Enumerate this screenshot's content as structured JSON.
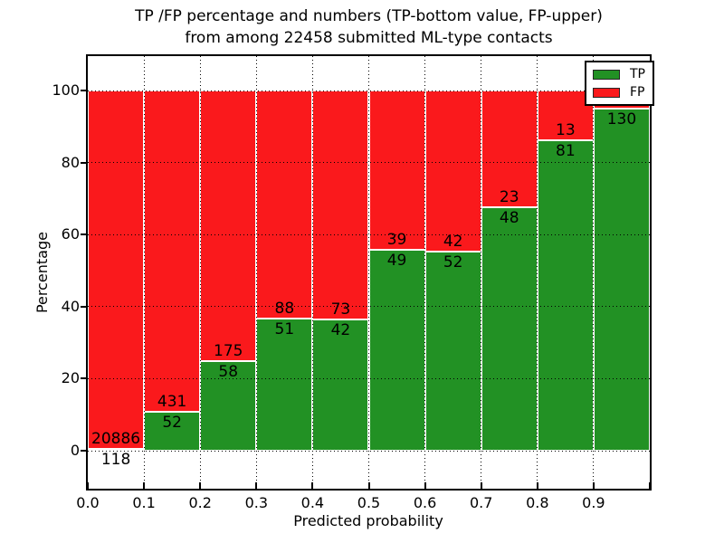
{
  "title": {
    "line1": "TP /FP percentage and numbers (TP-bottom value, FP-upper)",
    "line2": "from among 22458 submitted ML-type contacts"
  },
  "axes": {
    "xlabel": "Predicted probability",
    "ylabel": "Percentage",
    "x_tick_labels": [
      "0.0",
      "0.1",
      "0.2",
      "0.3",
      "0.4",
      "0.5",
      "0.6",
      "0.7",
      "0.8",
      "0.9"
    ],
    "y_tick_labels": [
      "0",
      "20",
      "40",
      "60",
      "80",
      "100"
    ],
    "y_tick_values": [
      0,
      20,
      40,
      60,
      80,
      100
    ]
  },
  "legend": {
    "items": [
      {
        "label": "TP",
        "color": "#229124"
      },
      {
        "label": "FP",
        "color": "#fa191c"
      }
    ]
  },
  "chart_data": {
    "type": "bar",
    "stacked": true,
    "title": "TP /FP percentage and numbers (TP-bottom value, FP-upper) from among 22458 submitted ML-type contacts",
    "xlabel": "Predicted probability",
    "ylabel": "Percentage",
    "x_bins": [
      0.0,
      0.1,
      0.2,
      0.3,
      0.4,
      0.5,
      0.6,
      0.7,
      0.8,
      0.9
    ],
    "bin_width": 0.1,
    "xlim": [
      0.0,
      1.0
    ],
    "ylim": [
      -10.5,
      109.5
    ],
    "grid": "dotted, drawn above bars",
    "legend_position": "upper right",
    "series": [
      {
        "name": "TP",
        "color": "#229124",
        "values": [
          118,
          52,
          58,
          51,
          42,
          49,
          52,
          48,
          81,
          130
        ]
      },
      {
        "name": "FP",
        "color": "#fa191c",
        "values": [
          20886,
          431,
          175,
          88,
          73,
          39,
          42,
          23,
          13,
          null
        ]
      }
    ],
    "fp_label_note": "FP count label of the 0.9 bin is hidden behind the legend",
    "tp_percent": [
      0.56,
      10.77,
      24.89,
      36.69,
      36.52,
      55.68,
      55.32,
      67.61,
      86.17,
      95.0
    ]
  }
}
